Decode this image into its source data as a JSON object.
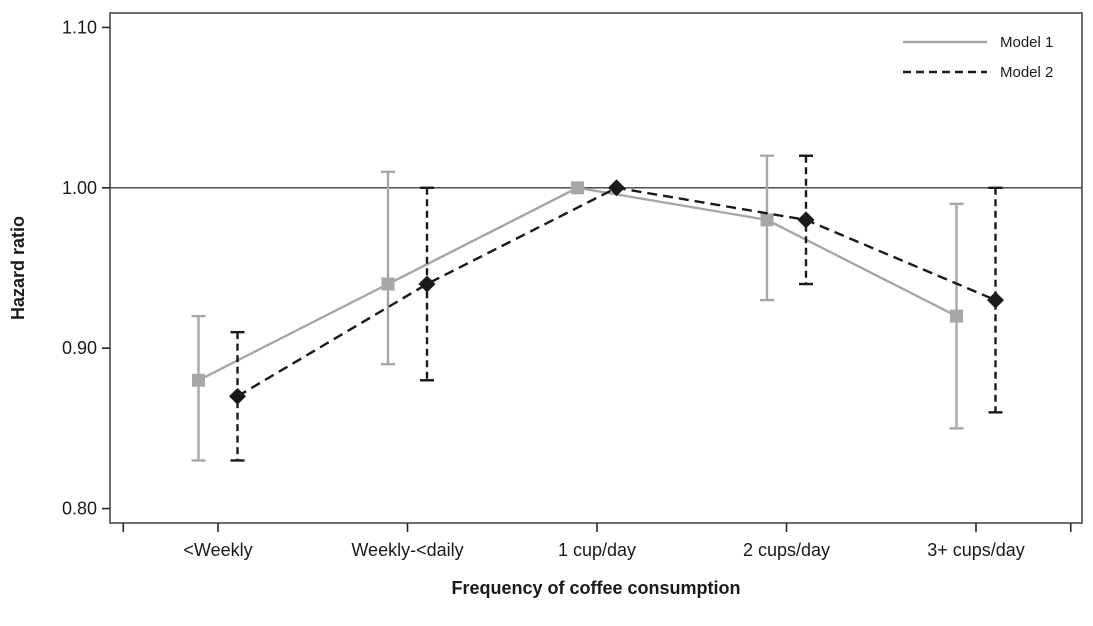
{
  "chart_data": {
    "type": "line",
    "title": "",
    "xlabel": "Frequency of coffee consumption",
    "ylabel": "Hazard ratio",
    "categories": [
      "<Weekly",
      "Weekly-<daily",
      "1 cup/day",
      "2 cups/day",
      "3+ cups/day"
    ],
    "ylim": [
      0.791,
      1.109
    ],
    "y_ticks": [
      1.1,
      1.0,
      0.9,
      0.8
    ],
    "y_tick_labels": [
      "1.10",
      "1.00",
      "0.90",
      "0.80"
    ],
    "reference_line": 1.0,
    "grid": false,
    "legend_position": "top-right-inside",
    "colors": {
      "model1": "#a7a7a7",
      "model2": "#1a1a1a",
      "reference_line": "#3c3c3c",
      "plot_border": "#4a4a4a"
    },
    "series": [
      {
        "name": "Model 1",
        "color": "#a7a7a7",
        "line_style": "solid",
        "marker": "square",
        "values": [
          0.88,
          0.94,
          1.0,
          0.98,
          0.92
        ],
        "ci_low": [
          0.83,
          0.89,
          null,
          0.93,
          0.85
        ],
        "ci_high": [
          0.92,
          1.01,
          null,
          1.02,
          0.99
        ]
      },
      {
        "name": "Model 2",
        "color": "#1a1a1a",
        "line_style": "dashed",
        "marker": "diamond",
        "values": [
          0.87,
          0.94,
          1.0,
          0.98,
          0.93
        ],
        "ci_low": [
          0.83,
          0.88,
          null,
          0.94,
          0.86
        ],
        "ci_high": [
          0.91,
          1.0,
          null,
          1.02,
          1.0
        ]
      }
    ]
  }
}
